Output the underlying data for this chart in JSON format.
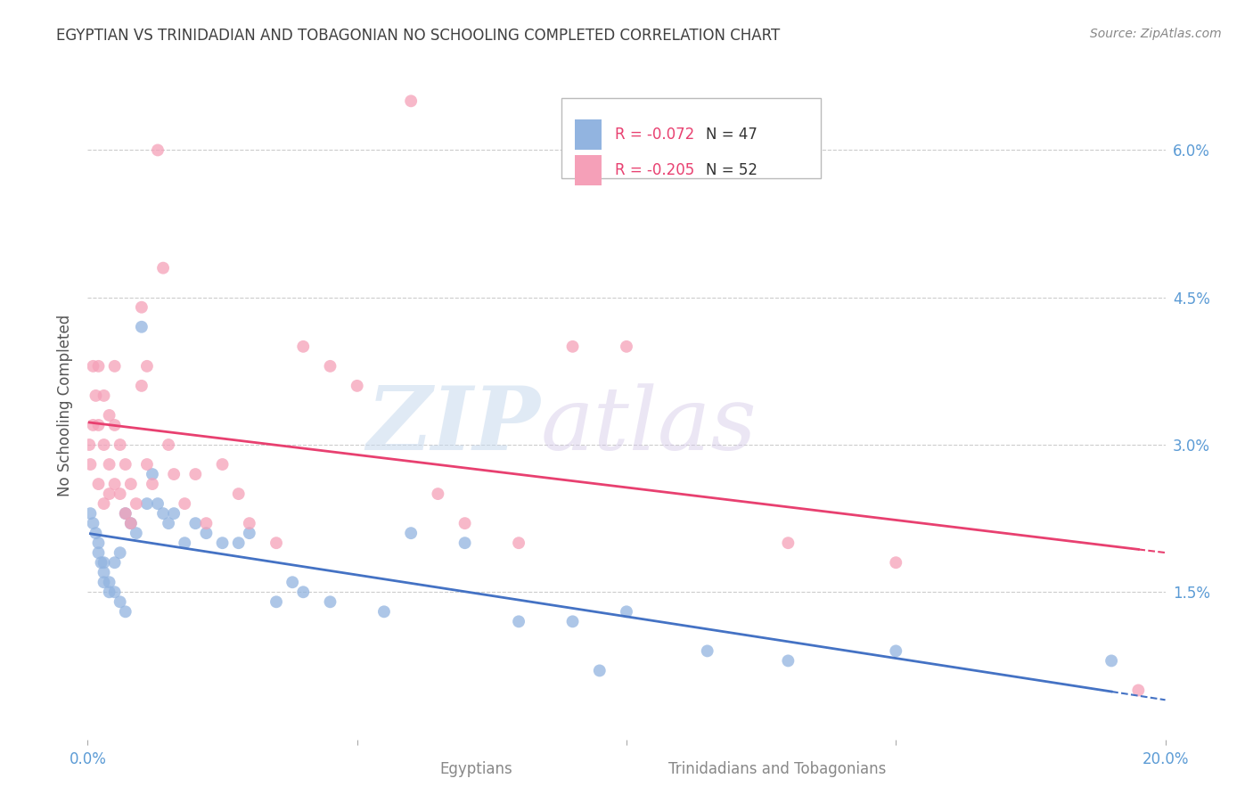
{
  "title": "EGYPTIAN VS TRINIDADIAN AND TOBAGONIAN NO SCHOOLING COMPLETED CORRELATION CHART",
  "source": "Source: ZipAtlas.com",
  "ylabel_label": "No Schooling Completed",
  "xlabel_blue": "Egyptians",
  "xlabel_pink": "Trinidadians and Tobagonians",
  "watermark_zip": "ZIP",
  "watermark_atlas": "atlas",
  "legend_blue_r": "R = -0.072",
  "legend_blue_n": "N = 47",
  "legend_pink_r": "R = -0.205",
  "legend_pink_n": "N = 52",
  "color_blue": "#92b4e0",
  "color_pink": "#f5a0b8",
  "color_line_blue": "#4472c4",
  "color_line_pink": "#e84070",
  "color_axis": "#5b9bd5",
  "color_title": "#404040",
  "color_source": "#888888",
  "color_legend_r_blue": "#e84070",
  "color_legend_r_pink": "#e84070",
  "xlim": [
    0.0,
    0.2
  ],
  "ylim": [
    0.0,
    0.068
  ],
  "yticks": [
    0.015,
    0.03,
    0.045,
    0.06
  ],
  "ytick_labels": [
    "1.5%",
    "3.0%",
    "4.5%",
    "6.0%"
  ],
  "xtick_positions": [
    0.0,
    0.05,
    0.1,
    0.15,
    0.2
  ],
  "xtick_labels": [
    "0.0%",
    "",
    "",
    "",
    "20.0%"
  ],
  "blue_x": [
    0.0005,
    0.001,
    0.0015,
    0.002,
    0.002,
    0.0025,
    0.003,
    0.003,
    0.003,
    0.004,
    0.004,
    0.005,
    0.005,
    0.006,
    0.006,
    0.007,
    0.007,
    0.008,
    0.009,
    0.01,
    0.011,
    0.012,
    0.013,
    0.014,
    0.015,
    0.016,
    0.018,
    0.02,
    0.022,
    0.025,
    0.028,
    0.03,
    0.035,
    0.038,
    0.04,
    0.045,
    0.055,
    0.06,
    0.07,
    0.08,
    0.09,
    0.095,
    0.1,
    0.115,
    0.13,
    0.15,
    0.19
  ],
  "blue_y": [
    0.023,
    0.022,
    0.021,
    0.02,
    0.019,
    0.018,
    0.018,
    0.017,
    0.016,
    0.016,
    0.015,
    0.018,
    0.015,
    0.019,
    0.014,
    0.023,
    0.013,
    0.022,
    0.021,
    0.042,
    0.024,
    0.027,
    0.024,
    0.023,
    0.022,
    0.023,
    0.02,
    0.022,
    0.021,
    0.02,
    0.02,
    0.021,
    0.014,
    0.016,
    0.015,
    0.014,
    0.013,
    0.021,
    0.02,
    0.012,
    0.012,
    0.007,
    0.013,
    0.009,
    0.008,
    0.009,
    0.008
  ],
  "pink_x": [
    0.0003,
    0.0005,
    0.001,
    0.001,
    0.0015,
    0.002,
    0.002,
    0.002,
    0.003,
    0.003,
    0.003,
    0.004,
    0.004,
    0.004,
    0.005,
    0.005,
    0.005,
    0.006,
    0.006,
    0.007,
    0.007,
    0.008,
    0.008,
    0.009,
    0.01,
    0.01,
    0.011,
    0.011,
    0.012,
    0.013,
    0.014,
    0.015,
    0.016,
    0.018,
    0.02,
    0.022,
    0.025,
    0.028,
    0.03,
    0.035,
    0.04,
    0.045,
    0.05,
    0.06,
    0.065,
    0.07,
    0.08,
    0.09,
    0.1,
    0.13,
    0.15,
    0.195
  ],
  "pink_y": [
    0.03,
    0.028,
    0.038,
    0.032,
    0.035,
    0.038,
    0.032,
    0.026,
    0.035,
    0.03,
    0.024,
    0.033,
    0.028,
    0.025,
    0.038,
    0.032,
    0.026,
    0.03,
    0.025,
    0.028,
    0.023,
    0.026,
    0.022,
    0.024,
    0.044,
    0.036,
    0.038,
    0.028,
    0.026,
    0.06,
    0.048,
    0.03,
    0.027,
    0.024,
    0.027,
    0.022,
    0.028,
    0.025,
    0.022,
    0.02,
    0.04,
    0.038,
    0.036,
    0.065,
    0.025,
    0.022,
    0.02,
    0.04,
    0.04,
    0.02,
    0.018,
    0.005
  ]
}
